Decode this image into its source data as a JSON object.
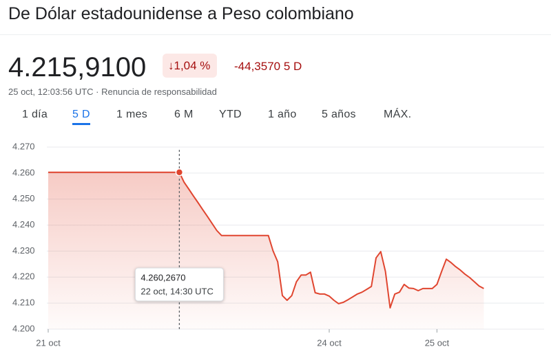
{
  "header": {
    "title": "De Dólar estadounidense a Peso colombiano",
    "price": "4.215,9100",
    "change_percent": "1,04 %",
    "change_abs": "-44,3570",
    "period": "5 D",
    "timestamp": "25 oct, 12:03:56 UTC · Renuncia de responsabilidad"
  },
  "tabs": [
    "1 día",
    "5 D",
    "1 mes",
    "6 M",
    "YTD",
    "1 año",
    "5 años",
    "MÁX."
  ],
  "active_tab": 1,
  "chart_data": {
    "type": "line",
    "categories": [
      "21 oct",
      null,
      null,
      null,
      null,
      null,
      null,
      null,
      null,
      null,
      null,
      null,
      null,
      null,
      null,
      null,
      null,
      null,
      null,
      null,
      null,
      null,
      null,
      null,
      null,
      null,
      null,
      null,
      null,
      null,
      null,
      null,
      null,
      null,
      null,
      null,
      null,
      null,
      null,
      null,
      null,
      null,
      null,
      null,
      null,
      null,
      null,
      null,
      null,
      null,
      null,
      null,
      null,
      null,
      null,
      null,
      null,
      null,
      null,
      null,
      "24 oct",
      null,
      null,
      null,
      null,
      null,
      null,
      null,
      null,
      null,
      null,
      null,
      null,
      null,
      null,
      null,
      null,
      null,
      null,
      null,
      null,
      null,
      null,
      "25 oct",
      null,
      null,
      null,
      null,
      null,
      null,
      null,
      null,
      null,
      null
    ],
    "values": [
      4260.3,
      4260.3,
      4260.3,
      4260.3,
      4260.3,
      4260.3,
      4260.3,
      4260.3,
      4260.3,
      4260.3,
      4260.3,
      4260.3,
      4260.3,
      4260.3,
      4260.3,
      4260.3,
      4260.3,
      4260.3,
      4260.3,
      4260.3,
      4260.3,
      4260.3,
      4260.3,
      4260.3,
      4260.3,
      4260.3,
      4260.3,
      4260.3,
      4260.3,
      4256.5,
      4253.9,
      4251.2,
      4248.6,
      4245.9,
      4243.3,
      4240.6,
      4237.9,
      4236,
      4236,
      4236,
      4236,
      4236,
      4236,
      4236,
      4236,
      4236,
      4236,
      4236,
      4230.1,
      4225.9,
      4212.9,
      4211.1,
      4212.9,
      4218.2,
      4220.8,
      4220.8,
      4221.9,
      4214,
      4213.5,
      4213.5,
      4212.7,
      4211.1,
      4209.8,
      4210.3,
      4211.3,
      4212.4,
      4213.5,
      4214.2,
      4215.3,
      4216.4,
      4227.4,
      4229.8,
      4222.2,
      4208.2,
      4213.5,
      4214.2,
      4217.2,
      4215.8,
      4215.6,
      4214.8,
      4215.6,
      4215.6,
      4215.6,
      4217.2,
      4222.2,
      4226.9,
      4225.6,
      4224,
      4222.7,
      4221.1,
      4219.8,
      4218.2,
      4216.6,
      4215.6
    ],
    "color": "#e0452f",
    "ylim": [
      4200,
      4270
    ],
    "yticks": [
      {
        "value": 4200,
        "label": "4.200"
      },
      {
        "value": 4210,
        "label": "4.210"
      },
      {
        "value": 4220,
        "label": "4.220"
      },
      {
        "value": 4230,
        "label": "4.230"
      },
      {
        "value": 4240,
        "label": "4.240"
      },
      {
        "value": 4250,
        "label": "4.250"
      },
      {
        "value": 4260,
        "label": "4.260"
      },
      {
        "value": 4270,
        "label": "4.270"
      }
    ],
    "grid": true,
    "tooltip": {
      "label": "4.260,2670",
      "time": "22 oct, 14:30 UTC"
    }
  }
}
